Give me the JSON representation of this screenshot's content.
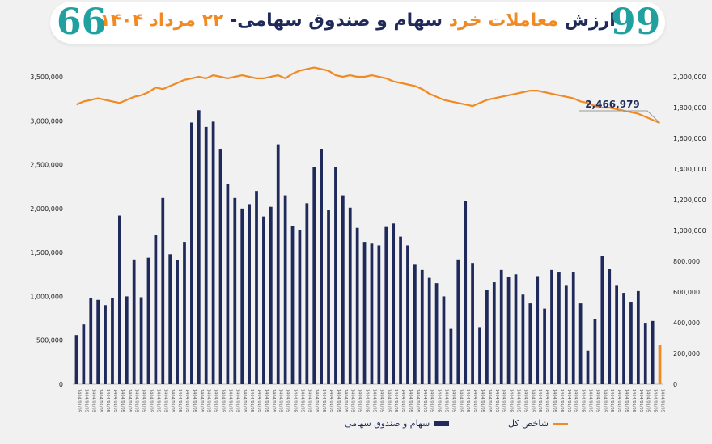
{
  "header": {
    "title_part1": "ارزش ",
    "title_part2": "معاملات خرد",
    "title_part3": " سهام و صندوق سهامی- ",
    "title_part4": "۲۲ مرداد ۱۴۰۴",
    "quote_left": "66",
    "quote_right": "99"
  },
  "legend": {
    "bars_label": "سهام و صندوق سهامی",
    "line_label": "شاخص کل"
  },
  "colors": {
    "bar": "#1f2a5a",
    "bar_highlight": "#f08a24",
    "line": "#f08a24",
    "header_accent": "#21a0a0"
  },
  "chart_data": {
    "type": "bar",
    "title": "ارزش معاملات خرد سهام و صندوق سهامی- ۲۲ مرداد ۱۴۰۴",
    "left_axis": {
      "range": [
        0,
        3500000
      ],
      "ticks": [
        "0",
        "500,000",
        "1,000,000",
        "1,500,000",
        "2,000,000",
        "2,500,000",
        "3,000,000",
        "3,500,000"
      ]
    },
    "right_axis": {
      "range": [
        0,
        2000000
      ],
      "ticks": [
        "0",
        "200,000",
        "400,000",
        "600,000",
        "800,000",
        "1,000,000",
        "1,200,000",
        "1,400,000",
        "1,600,000",
        "1,800,000",
        "2,000,000"
      ]
    },
    "annotation": "2,466,979",
    "x_label_sample": "1404/01/05",
    "series": [
      {
        "name": "سهام و صندوق سهامی",
        "type": "bar",
        "axis": "left",
        "values": [
          560000,
          680000,
          980000,
          960000,
          900000,
          980000,
          1920000,
          1000000,
          1420000,
          990000,
          1440000,
          1700000,
          2120000,
          1480000,
          1410000,
          1620000,
          2980000,
          3120000,
          2930000,
          2990000,
          2680000,
          2280000,
          2120000,
          2000000,
          2050000,
          2200000,
          1910000,
          2020000,
          2730000,
          2150000,
          1800000,
          1750000,
          2060000,
          2470000,
          2680000,
          1980000,
          2470000,
          2150000,
          2010000,
          1780000,
          1620000,
          1600000,
          1580000,
          1790000,
          1830000,
          1680000,
          1580000,
          1360000,
          1300000,
          1210000,
          1150000,
          1000000,
          630000,
          1420000,
          2090000,
          1380000,
          650000,
          1070000,
          1160000,
          1300000,
          1220000,
          1250000,
          1020000,
          920000,
          1230000,
          860000,
          1300000,
          1280000,
          1120000,
          1280000,
          920000,
          380000,
          740000,
          1460000,
          1310000,
          1120000,
          1040000,
          930000,
          1060000,
          690000,
          720000,
          450000
        ]
      },
      {
        "name": "شاخص کل",
        "type": "line",
        "axis": "right",
        "values": [
          1820000,
          1840000,
          1850000,
          1860000,
          1850000,
          1840000,
          1830000,
          1850000,
          1870000,
          1880000,
          1900000,
          1930000,
          1920000,
          1940000,
          1960000,
          1980000,
          1990000,
          2000000,
          1990000,
          2010000,
          2000000,
          1990000,
          2000000,
          2010000,
          2000000,
          1990000,
          1990000,
          2000000,
          2010000,
          1990000,
          2020000,
          2040000,
          2050000,
          2060000,
          2050000,
          2040000,
          2010000,
          2000000,
          2010000,
          2000000,
          2000000,
          2010000,
          2000000,
          1990000,
          1970000,
          1960000,
          1950000,
          1940000,
          1920000,
          1890000,
          1870000,
          1850000,
          1840000,
          1830000,
          1820000,
          1810000,
          1830000,
          1850000,
          1860000,
          1870000,
          1880000,
          1890000,
          1900000,
          1910000,
          1910000,
          1900000,
          1890000,
          1880000,
          1870000,
          1860000,
          1840000,
          1830000,
          1810000,
          1800000,
          1800000,
          1790000,
          1780000,
          1770000,
          1760000,
          1740000,
          1720000,
          1700000
        ]
      }
    ]
  }
}
